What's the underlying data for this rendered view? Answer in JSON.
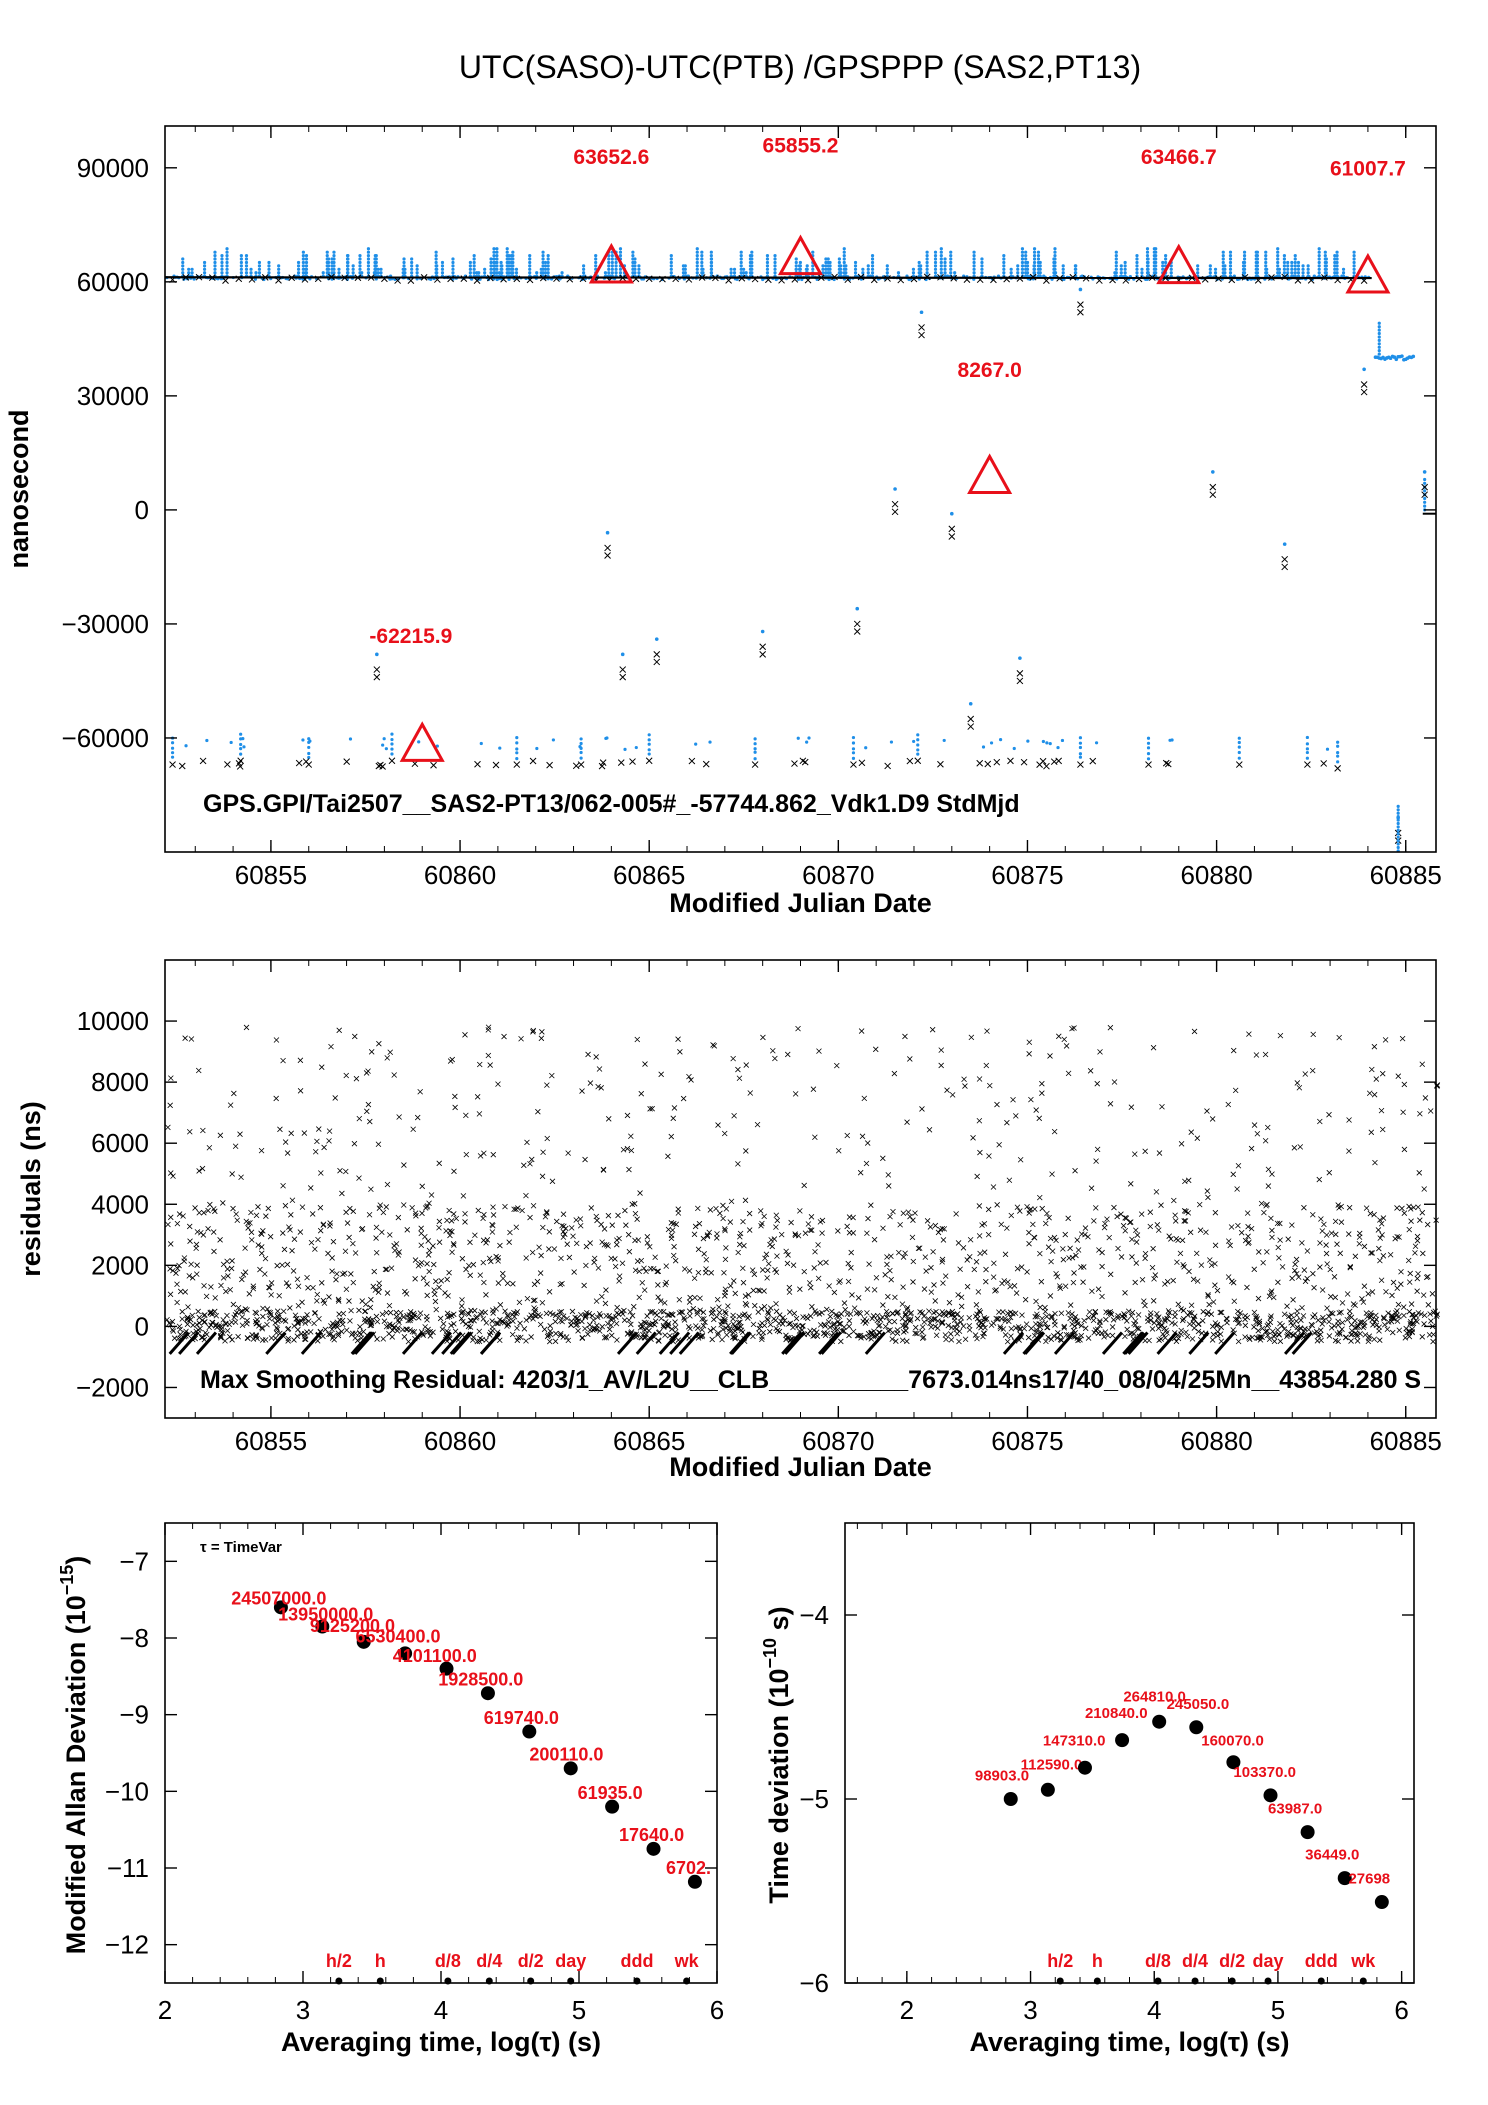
{
  "chart_data": [
    {
      "type": "scatter",
      "title": "UTC(SASO)-UTC(PTB)  /GPSPPP  (SAS2,PT13)",
      "xlabel": "Modified Julian Date",
      "ylabel": "nanosecond",
      "xlim": [
        60852.2,
        60885.8
      ],
      "ylim": [
        -90000,
        101000
      ],
      "xticks": [
        60855,
        60860,
        60865,
        60870,
        60875,
        60880,
        60885
      ],
      "yticks": [
        -60000,
        -30000,
        0,
        30000,
        60000,
        90000
      ],
      "ytick_labels": [
        "−60000",
        "−30000",
        "0",
        "30000",
        "60000",
        "90000"
      ],
      "annotation": "GPS.GPI/Tai2507__SAS2-PT13/062-005#_-57744.862_Vdk1.D9  StdMjd",
      "series": [
        {
          "values": [
            {
              "x": 60852.3,
              "y": 61500
            },
            {
              "x": 60856,
              "y": 61400
            },
            {
              "x": 60860,
              "y": 61300
            },
            {
              "x": 60864,
              "y": 61200
            },
            {
              "x": 60868,
              "y": 61000
            },
            {
              "x": 60872,
              "y": 61000
            },
            {
              "x": 60876,
              "y": 61100
            },
            {
              "x": 60880,
              "y": 61200
            },
            {
              "x": 60884,
              "y": 61000
            },
            {
              "x": 60884.3,
              "y": 40000
            },
            {
              "x": 60885.2,
              "y": 40000
            },
            {
              "x": 60885.4,
              "y": -1000
            },
            {
              "x": 60885.8,
              "y": -1000
            }
          ]
        },
        {
          "values": [
            {
              "x": 60852.4,
              "y": -67000
            },
            {
              "x": 60854.2,
              "y": -66000
            },
            {
              "x": 60856,
              "y": -67000
            },
            {
              "x": 60858.2,
              "y": -66000
            },
            {
              "x": 60861.5,
              "y": -67000
            },
            {
              "x": 60863.2,
              "y": -67000
            },
            {
              "x": 60865,
              "y": -66000
            },
            {
              "x": 60867.8,
              "y": -67000
            },
            {
              "x": 60870.4,
              "y": -67000
            },
            {
              "x": 60872.1,
              "y": -66000
            },
            {
              "x": 60876.4,
              "y": -67000
            },
            {
              "x": 60878.2,
              "y": -67000
            },
            {
              "x": 60880.6,
              "y": -67000
            },
            {
              "x": 60882.4,
              "y": -67000
            },
            {
              "x": 60883.2,
              "y": -68000
            }
          ]
        },
        {
          "values": [
            {
              "x": 60857.8,
              "y": -42000
            },
            {
              "x": 60863.9,
              "y": -10000
            },
            {
              "x": 60864.3,
              "y": -42000
            },
            {
              "x": 60865.2,
              "y": -38000
            },
            {
              "x": 60868,
              "y": -36000
            },
            {
              "x": 60870.5,
              "y": -30000
            },
            {
              "x": 60871.5,
              "y": 1500
            },
            {
              "x": 60872.2,
              "y": 48000
            },
            {
              "x": 60873,
              "y": -5000
            },
            {
              "x": 60873.5,
              "y": -55000
            },
            {
              "x": 60874.8,
              "y": -43000
            },
            {
              "x": 60876.4,
              "y": 54000
            },
            {
              "x": 60879.9,
              "y": 6000
            },
            {
              "x": 60881.8,
              "y": -13000
            },
            {
              "x": 60883.9,
              "y": 33000
            },
            {
              "x": 60885.5,
              "y": 6000
            },
            {
              "x": 60884.8,
              "y": -85000
            }
          ]
        }
      ],
      "markers": [
        {
          "x": 60859,
          "y": -62215.9,
          "label": "-62215.9"
        },
        {
          "x": 60864,
          "y": 63652.6,
          "label": "63652.6"
        },
        {
          "x": 60869,
          "y": 65855.2,
          "label": "65855.2"
        },
        {
          "x": 60874,
          "y": 8267.0,
          "label": "8267.0"
        },
        {
          "x": 60879,
          "y": 63466.7,
          "label": "63466.7"
        },
        {
          "x": 60884,
          "y": 61007.7,
          "label": "61007.7"
        }
      ]
    },
    {
      "type": "scatter",
      "xlabel": "Modified Julian Date",
      "ylabel": "residuals (ns)",
      "xlim": [
        60852.2,
        60885.8
      ],
      "ylim": [
        -3000,
        12000
      ],
      "xticks": [
        60855,
        60860,
        60865,
        60870,
        60875,
        60880,
        60885
      ],
      "yticks": [
        -2000,
        0,
        2000,
        4000,
        6000,
        8000,
        10000
      ],
      "ytick_labels": [
        "−2000",
        "0",
        "2000",
        "4000",
        "6000",
        "8000",
        "10000"
      ],
      "annotation": "Max Smoothing Residual: 4203/1_AV/L2U__CLB__________7673.014ns17/40_08/04/25Mn__43854.280  S"
    },
    {
      "type": "scatter",
      "xlabel": "Averaging time, log(τ) (s)",
      "ylabel": "Modified Allan Deviation (10",
      "ylabel_sup": "−15",
      "ylabel_end": ")",
      "legend": "τ = TimeVar",
      "xlim": [
        2,
        6
      ],
      "ylim": [
        -12.5,
        -6.5
      ],
      "xticks": [
        2,
        3,
        4,
        5,
        6
      ],
      "yticks": [
        -12,
        -11,
        -10,
        -9,
        -8,
        -7
      ],
      "ytick_labels": [
        "−12",
        "−11",
        "−10",
        "−9",
        "−8",
        "−7"
      ],
      "x": [
        2.84,
        3.14,
        3.44,
        3.74,
        4.04,
        4.34,
        4.64,
        4.94,
        5.24,
        5.54,
        5.84
      ],
      "y": [
        -7.6,
        -7.85,
        -8.05,
        -8.2,
        -8.4,
        -8.72,
        -9.22,
        -9.7,
        -10.2,
        -10.75,
        -11.18
      ],
      "point_labels": [
        "24507000.0",
        "13950000.0",
        "9125200.0",
        "6530400.0",
        "4101100.0",
        "1928500.0",
        "619740.0",
        "200110.0",
        "61935.0",
        "17640.0",
        "6702."
      ],
      "label_pos": [
        [
          2.48,
          -7.56
        ],
        [
          2.82,
          -7.77
        ],
        [
          3.05,
          -7.92
        ],
        [
          3.38,
          -8.06
        ],
        [
          3.65,
          -8.31
        ],
        [
          3.98,
          -8.62
        ],
        [
          4.31,
          -9.12
        ],
        [
          4.64,
          -9.6
        ],
        [
          4.99,
          -10.1
        ],
        [
          5.29,
          -10.65
        ],
        [
          5.63,
          -11.08
        ]
      ],
      "markers": [
        "h/2",
        "h",
        "d/8",
        "d/4",
        "d/2",
        "day",
        "ddd",
        "wk"
      ],
      "marker_x": [
        3.26,
        3.56,
        4.05,
        4.35,
        4.65,
        4.94,
        5.42,
        5.78
      ]
    },
    {
      "type": "scatter",
      "xlabel": "Averaging time, log(τ) (s)",
      "ylabel": "Time deviation (10",
      "ylabel_sup": "−10",
      "ylabel_end": " s)",
      "xlim": [
        1.5,
        6.1
      ],
      "ylim": [
        -6,
        -3.5
      ],
      "xticks": [
        2,
        3,
        4,
        5,
        6
      ],
      "yticks": [
        -6,
        -5,
        -4
      ],
      "ytick_labels": [
        "−6",
        "−5",
        "−4"
      ],
      "x": [
        2.84,
        3.14,
        3.44,
        3.74,
        4.04,
        4.34,
        4.64,
        4.94,
        5.24,
        5.54,
        5.84
      ],
      "y": [
        -5.0,
        -4.95,
        -4.83,
        -4.68,
        -4.58,
        -4.61,
        -4.8,
        -4.98,
        -5.18,
        -5.43,
        -5.56
      ],
      "point_labels": [
        "98903.0",
        "112590.0",
        "147310.0",
        "210840.0",
        "264810.0",
        "245050.0",
        "160070.0",
        "103370.0",
        "63987.0",
        "36449.0",
        "27698"
      ],
      "label_pos": [
        [
          2.55,
          -4.9
        ],
        [
          2.92,
          -4.84
        ],
        [
          3.1,
          -4.71
        ],
        [
          3.44,
          -4.56
        ],
        [
          3.75,
          -4.47
        ],
        [
          4.1,
          -4.51
        ],
        [
          4.38,
          -4.71
        ],
        [
          4.64,
          -4.88
        ],
        [
          4.92,
          -5.08
        ],
        [
          5.22,
          -5.33
        ],
        [
          5.57,
          -5.46
        ]
      ],
      "markers": [
        "h/2",
        "h",
        "d/8",
        "d/4",
        "d/2",
        "day",
        "ddd",
        "wk"
      ],
      "marker_x": [
        3.24,
        3.54,
        4.03,
        4.33,
        4.63,
        4.92,
        5.35,
        5.69
      ]
    }
  ]
}
